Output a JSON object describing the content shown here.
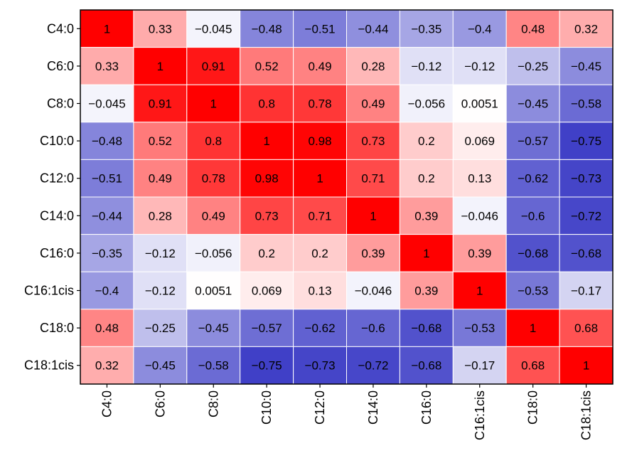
{
  "chart_data": {
    "type": "heatmap",
    "title": "",
    "xlabel": "",
    "ylabel": "",
    "rows": [
      "C4:0",
      "C6:0",
      "C8:0",
      "C10:0",
      "C12:0",
      "C14:0",
      "C16:0",
      "C16:1cis",
      "C18:0",
      "C18:1cis"
    ],
    "columns": [
      "C4:0",
      "C6:0",
      "C8:0",
      "C10:0",
      "C12:0",
      "C14:0",
      "C16:0",
      "C16:1cis",
      "C18:0",
      "C18:1cis"
    ],
    "values": [
      [
        1,
        0.33,
        -0.045,
        -0.48,
        -0.51,
        -0.44,
        -0.35,
        -0.4,
        0.48,
        0.32
      ],
      [
        0.33,
        1,
        0.91,
        0.52,
        0.49,
        0.28,
        -0.12,
        -0.12,
        -0.25,
        -0.45
      ],
      [
        -0.045,
        0.91,
        1,
        0.8,
        0.78,
        0.49,
        -0.056,
        0.0051,
        -0.45,
        -0.58
      ],
      [
        -0.48,
        0.52,
        0.8,
        1,
        0.98,
        0.73,
        0.2,
        0.069,
        -0.57,
        -0.75
      ],
      [
        -0.51,
        0.49,
        0.78,
        0.98,
        1,
        0.71,
        0.2,
        0.13,
        -0.62,
        -0.73
      ],
      [
        -0.44,
        0.28,
        0.49,
        0.73,
        0.71,
        1,
        0.39,
        -0.046,
        -0.6,
        -0.72
      ],
      [
        -0.35,
        -0.12,
        -0.056,
        0.2,
        0.2,
        0.39,
        1,
        0.39,
        -0.68,
        -0.68
      ],
      [
        -0.4,
        -0.12,
        0.0051,
        0.069,
        0.13,
        -0.046,
        0.39,
        1,
        -0.53,
        -0.17
      ],
      [
        0.48,
        -0.25,
        -0.45,
        -0.57,
        -0.62,
        -0.6,
        -0.68,
        -0.53,
        1,
        0.68
      ],
      [
        0.32,
        -0.45,
        -0.58,
        -0.75,
        -0.73,
        -0.72,
        -0.68,
        -0.17,
        0.68,
        1
      ]
    ],
    "value_labels": [
      [
        "1",
        "0.33",
        "−0.045",
        "−0.48",
        "−0.51",
        "−0.44",
        "−0.35",
        "−0.4",
        "0.48",
        "0.32"
      ],
      [
        "0.33",
        "1",
        "0.91",
        "0.52",
        "0.49",
        "0.28",
        "−0.12",
        "−0.12",
        "−0.25",
        "−0.45"
      ],
      [
        "−0.045",
        "0.91",
        "1",
        "0.8",
        "0.78",
        "0.49",
        "−0.056",
        "0.0051",
        "−0.45",
        "−0.58"
      ],
      [
        "−0.48",
        "0.52",
        "0.8",
        "1",
        "0.98",
        "0.73",
        "0.2",
        "0.069",
        "−0.57",
        "−0.75"
      ],
      [
        "−0.51",
        "0.49",
        "0.78",
        "0.98",
        "1",
        "0.71",
        "0.2",
        "0.13",
        "−0.62",
        "−0.73"
      ],
      [
        "−0.44",
        "0.28",
        "0.49",
        "0.73",
        "0.71",
        "1",
        "0.39",
        "−0.046",
        "−0.6",
        "−0.72"
      ],
      [
        "−0.35",
        "−0.12",
        "−0.056",
        "0.2",
        "0.2",
        "0.39",
        "1",
        "0.39",
        "−0.68",
        "−0.68"
      ],
      [
        "−0.4",
        "−0.12",
        "0.0051",
        "0.069",
        "0.13",
        "−0.046",
        "0.39",
        "1",
        "−0.53",
        "−0.17"
      ],
      [
        "0.48",
        "−0.25",
        "−0.45",
        "−0.57",
        "−0.62",
        "−0.6",
        "−0.68",
        "−0.53",
        "1",
        "0.68"
      ],
      [
        "0.32",
        "−0.45",
        "−0.58",
        "−0.75",
        "−0.73",
        "−0.72",
        "−0.68",
        "−0.17",
        "0.68",
        "1"
      ]
    ],
    "value_range": [
      -1,
      1
    ],
    "colorscale": {
      "negative": "#0000b4",
      "zero": "#ffffff",
      "positive": "#ff0000"
    },
    "grid_color": "#ffffff",
    "legend": "none"
  }
}
